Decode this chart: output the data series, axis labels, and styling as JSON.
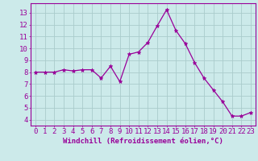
{
  "x": [
    0,
    1,
    2,
    3,
    4,
    5,
    6,
    7,
    8,
    9,
    10,
    11,
    12,
    13,
    14,
    15,
    16,
    17,
    18,
    19,
    20,
    21,
    22,
    23
  ],
  "y": [
    8.0,
    8.0,
    8.0,
    8.2,
    8.1,
    8.2,
    8.2,
    7.5,
    8.5,
    7.2,
    9.5,
    9.7,
    10.5,
    11.9,
    13.25,
    11.5,
    10.4,
    8.8,
    7.5,
    6.5,
    5.5,
    4.3,
    4.3,
    4.6
  ],
  "line_color": "#990099",
  "marker_color": "#990099",
  "bg_color": "#cceaea",
  "grid_color": "#aacccc",
  "xlabel": "Windchill (Refroidissement éolien,°C)",
  "yticks": [
    4,
    5,
    6,
    7,
    8,
    9,
    10,
    11,
    12,
    13
  ],
  "xlim": [
    -0.5,
    23.5
  ],
  "ylim": [
    3.5,
    13.8
  ],
  "xlabel_fontsize": 6.5,
  "tick_fontsize": 6.5
}
